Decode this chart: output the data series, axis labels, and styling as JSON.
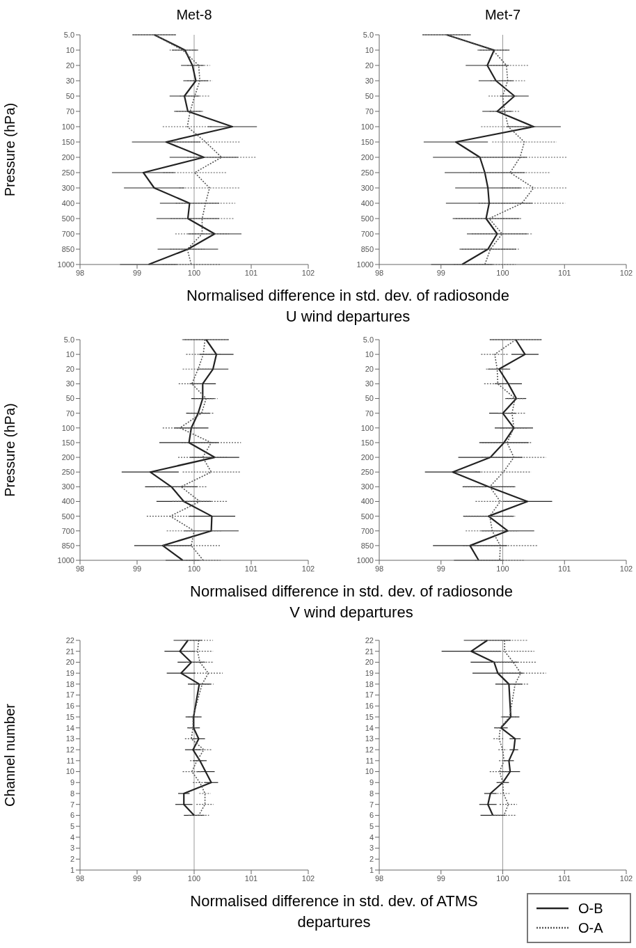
{
  "chart_data": [
    {
      "type": "line",
      "orientation": "horizontal",
      "title": "Met-8",
      "xlabel": "Normalised difference in std. dev. of radiosonde U wind departures",
      "ylabel": "Pressure (hPa)",
      "categories": [
        "5.0",
        "10",
        "20",
        "30",
        "50",
        "70",
        "100",
        "150",
        "200",
        "250",
        "300",
        "400",
        "500",
        "700",
        "850",
        "1000"
      ],
      "xlim": [
        98,
        102
      ],
      "xticks": [
        98,
        99,
        100,
        101,
        102
      ],
      "ref_lines": [
        {
          "axis": "x",
          "value": 100,
          "color": "#999999"
        }
      ],
      "marker": "none",
      "legend": "bottom right",
      "series": [
        {
          "name": "O-B",
          "color": "#222222",
          "line_style": "solid",
          "values": [
            99.3,
            99.84,
            99.97,
            100.03,
            99.83,
            99.89,
            100.67,
            99.51,
            100.17,
            99.11,
            99.3,
            99.92,
            99.89,
            100.36,
            99.89,
            99.2
          ],
          "errors": [
            0.38,
            0.23,
            0.2,
            0.22,
            0.26,
            0.24,
            0.43,
            0.6,
            0.6,
            0.55,
            0.53,
            0.52,
            0.55,
            0.47,
            0.53,
            0.5
          ]
        },
        {
          "name": "O-A",
          "color": "#555555",
          "line_style": "dotted",
          "values": [
            99.3,
            99.8,
            100.08,
            100.1,
            100.01,
            99.93,
            99.88,
            100.2,
            100.48,
            100.01,
            100.27,
            100.2,
            100.14,
            100.14,
            99.88,
            99.95
          ],
          "errors": [
            0.38,
            0.23,
            0.2,
            0.22,
            0.26,
            0.24,
            0.43,
            0.6,
            0.6,
            0.55,
            0.53,
            0.52,
            0.55,
            0.47,
            0.3,
            0.5
          ]
        }
      ]
    },
    {
      "type": "line",
      "orientation": "horizontal",
      "title": "Met-7",
      "categories": [
        "5.0",
        "10",
        "20",
        "30",
        "50",
        "70",
        "100",
        "150",
        "200",
        "250",
        "300",
        "400",
        "500",
        "700",
        "850",
        "1000"
      ],
      "xlim": [
        98,
        102
      ],
      "xticks": [
        98,
        99,
        100,
        101,
        102
      ],
      "ref_lines": [
        {
          "axis": "x",
          "value": 100,
          "color": "#999999"
        }
      ],
      "marker": "none",
      "series": [
        {
          "color": "#222222",
          "line_style": "solid",
          "values": [
            99.09,
            99.86,
            99.75,
            99.89,
            100.19,
            99.91,
            100.5,
            99.24,
            99.63,
            99.71,
            99.76,
            99.78,
            99.73,
            99.91,
            99.76,
            99.34
          ],
          "errors": [
            0.39,
            0.25,
            0.35,
            0.28,
            0.23,
            0.24,
            0.44,
            0.52,
            0.76,
            0.65,
            0.53,
            0.7,
            0.54,
            0.49,
            0.46,
            0.5
          ]
        },
        {
          "color": "#555555",
          "line_style": "dotted",
          "values": [
            99.09,
            99.84,
            100.06,
            100.08,
            100.0,
            100.03,
            100.09,
            100.35,
            100.28,
            100.12,
            100.5,
            100.31,
            99.78,
            99.99,
            99.8,
            99.71
          ],
          "errors": [
            0.39,
            0.25,
            0.35,
            0.28,
            0.23,
            0.24,
            0.44,
            0.52,
            0.76,
            0.65,
            0.53,
            0.7,
            0.54,
            0.49,
            0.46,
            0.5
          ]
        }
      ]
    },
    {
      "type": "line",
      "orientation": "horizontal",
      "xlabel": "Normalised difference in std. dev. of radiosonde V wind departures",
      "ylabel": "Pressure (hPa)",
      "categories": [
        "5.0",
        "10",
        "20",
        "30",
        "50",
        "70",
        "100",
        "150",
        "200",
        "250",
        "300",
        "400",
        "500",
        "700",
        "850",
        "1000"
      ],
      "xlim": [
        98,
        102
      ],
      "xticks": [
        98,
        99,
        100,
        101,
        102
      ],
      "ref_lines": [
        {
          "axis": "x",
          "value": 100,
          "color": "#999999"
        }
      ],
      "marker": "none",
      "series": [
        {
          "color": "#222222",
          "line_style": "solid",
          "values": [
            100.21,
            100.39,
            100.33,
            100.15,
            100.15,
            100.07,
            99.95,
            99.91,
            100.36,
            99.23,
            99.6,
            99.82,
            100.31,
            100.3,
            99.45,
            99.8
          ],
          "errors": [
            0.4,
            0.3,
            0.27,
            0.23,
            0.2,
            0.21,
            0.3,
            0.52,
            0.43,
            0.5,
            0.46,
            0.48,
            0.41,
            0.48,
            0.5,
            0.3
          ]
        },
        {
          "color": "#555555",
          "line_style": "dotted",
          "values": [
            100.19,
            100.16,
            100.07,
            99.96,
            100.21,
            100.13,
            99.75,
            100.3,
            100.15,
            100.3,
            99.77,
            100.1,
            99.58,
            100.0,
            99.95,
            100.16
          ],
          "errors": [
            0.4,
            0.3,
            0.27,
            0.23,
            0.2,
            0.21,
            0.3,
            0.52,
            0.43,
            0.5,
            0.46,
            0.48,
            0.41,
            0.48,
            0.5,
            0.3
          ]
        }
      ]
    },
    {
      "type": "line",
      "orientation": "horizontal",
      "categories": [
        "5.0",
        "10",
        "20",
        "30",
        "50",
        "70",
        "100",
        "150",
        "200",
        "250",
        "300",
        "400",
        "500",
        "700",
        "850",
        "1000"
      ],
      "xlim": [
        98,
        102
      ],
      "xticks": [
        98,
        99,
        100,
        101,
        102
      ],
      "ref_lines": [
        {
          "axis": "x",
          "value": 100,
          "color": "#999999"
        }
      ],
      "marker": "none",
      "series": [
        {
          "color": "#222222",
          "line_style": "solid",
          "values": [
            100.21,
            100.36,
            99.94,
            100.09,
            100.22,
            100.0,
            100.18,
            100.02,
            99.8,
            99.19,
            99.77,
            100.4,
            99.77,
            100.08,
            99.47,
            99.61
          ],
          "errors": [
            0.42,
            0.22,
            0.18,
            0.22,
            0.16,
            0.22,
            0.31,
            0.4,
            0.52,
            0.45,
            0.42,
            0.4,
            0.41,
            0.43,
            0.6,
            0.4
          ]
        },
        {
          "color": "#555555",
          "line_style": "dotted",
          "values": [
            100.21,
            99.87,
            99.91,
            99.92,
            100.2,
            100.15,
            100.18,
            100.07,
            100.18,
            100.01,
            99.79,
            99.96,
            99.79,
            99.83,
            99.96,
            99.95
          ],
          "errors": [
            0.42,
            0.22,
            0.18,
            0.22,
            0.16,
            0.22,
            0.22,
            0.4,
            0.52,
            0.45,
            0.42,
            0.4,
            0.41,
            0.43,
            0.6,
            0.4
          ]
        }
      ]
    },
    {
      "type": "line",
      "orientation": "horizontal",
      "xlabel": "Normalised difference in std. dev. of ATMS departures",
      "ylabel": "Channel number",
      "categories": [
        "22",
        "21",
        "20",
        "19",
        "18",
        "17",
        "16",
        "15",
        "14",
        "13",
        "12",
        "11",
        "10",
        "9",
        "8",
        "7",
        "6",
        "5",
        "4",
        "3",
        "2",
        "1"
      ],
      "xlim": [
        98,
        102
      ],
      "xticks": [
        98,
        99,
        100,
        101,
        102
      ],
      "ref_lines": [
        {
          "axis": "x",
          "value": 100,
          "color": "#999999"
        }
      ],
      "marker": "none",
      "series": [
        {
          "color": "#222222",
          "line_style": "solid",
          "values": [
            99.89,
            99.75,
            99.95,
            99.77,
            100.09,
            null,
            null,
            99.99,
            99.99,
            100.08,
            99.98,
            100.1,
            100.2,
            100.3,
            99.82,
            99.82,
            100.0,
            null,
            null,
            null,
            null,
            null
          ],
          "errors": [
            0.25,
            0.27,
            0.24,
            0.25,
            0.2,
            null,
            null,
            0.14,
            0.11,
            0.11,
            0.14,
            0.12,
            0.16,
            0.12,
            0.1,
            0.15,
            0.18,
            null,
            null,
            null,
            null,
            null
          ]
        },
        {
          "color": "#555555",
          "line_style": "dotted",
          "values": [
            100.08,
            100.06,
            100.1,
            100.25,
            100.14,
            null,
            null,
            99.98,
            99.98,
            99.95,
            100.17,
            100.05,
            99.96,
            100.1,
            100.19,
            100.19,
            100.08,
            null,
            null,
            null,
            null,
            null
          ],
          "errors": [
            0.25,
            0.27,
            0.24,
            0.25,
            0.2,
            null,
            null,
            0.08,
            0.07,
            0.11,
            0.14,
            0.12,
            0.16,
            0.12,
            0.1,
            0.15,
            0.18,
            null,
            null,
            null,
            null,
            null
          ]
        }
      ]
    },
    {
      "type": "line",
      "orientation": "horizontal",
      "categories": [
        "22",
        "21",
        "20",
        "19",
        "18",
        "17",
        "16",
        "15",
        "14",
        "13",
        "12",
        "11",
        "10",
        "9",
        "8",
        "7",
        "6",
        "5",
        "4",
        "3",
        "2",
        "1"
      ],
      "xlim": [
        98,
        102
      ],
      "xticks": [
        98,
        99,
        100,
        101,
        102
      ],
      "ref_lines": [
        {
          "axis": "x",
          "value": 100,
          "color": "#999999"
        }
      ],
      "marker": "none",
      "series": [
        {
          "color": "#222222",
          "line_style": "solid",
          "values": [
            99.75,
            99.49,
            99.86,
            99.92,
            100.1,
            null,
            null,
            100.13,
            99.97,
            100.2,
            100.18,
            100.1,
            100.12,
            100.0,
            99.8,
            99.76,
            99.84,
            null,
            null,
            null,
            null,
            null
          ],
          "errors": [
            0.38,
            0.48,
            0.38,
            0.41,
            0.22,
            null,
            null,
            0.14,
            0.11,
            0.09,
            0.07,
            0.08,
            0.16,
            0.1,
            0.1,
            0.14,
            0.2,
            null,
            null,
            null,
            null,
            null
          ]
        },
        {
          "color": "#555555",
          "line_style": "dotted",
          "values": [
            100.03,
            100.03,
            100.17,
            100.29,
            100.2,
            null,
            null,
            100.11,
            99.96,
            99.94,
            100.0,
            100.02,
            99.95,
            100.0,
            100.01,
            100.09,
            100.02,
            null,
            null,
            null,
            null,
            null
          ],
          "errors": [
            0.38,
            0.48,
            0.38,
            0.41,
            0.22,
            null,
            null,
            0.14,
            0.06,
            0.09,
            0.07,
            0.08,
            0.16,
            0.06,
            0.1,
            0.14,
            0.2,
            null,
            null,
            null,
            null,
            null
          ]
        }
      ]
    }
  ]
}
